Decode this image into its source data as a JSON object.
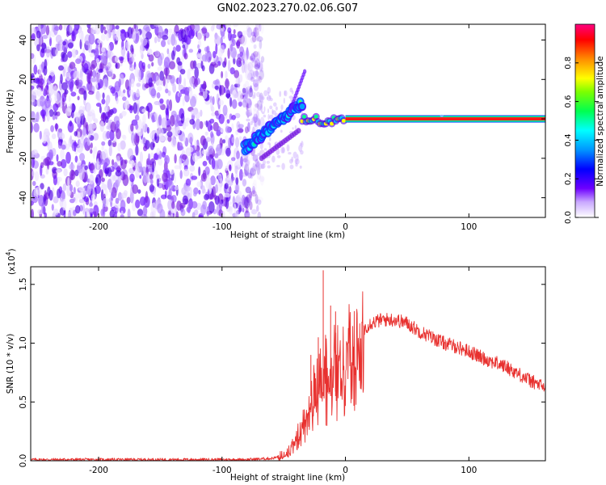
{
  "title": "GN02.2023.270.02.06.G07",
  "chart_data": [
    {
      "type": "heatmap",
      "xlabel": "Height of straight line (km)",
      "ylabel": "Frequency (Hz)",
      "xlim": [
        -255,
        162
      ],
      "ylim": [
        -50,
        48
      ],
      "xticks": [
        -200,
        -100,
        0,
        100
      ],
      "yticks": [
        -40,
        -20,
        0,
        20,
        40
      ],
      "colorbar": {
        "label": "Normalized spectral amplitude",
        "range": [
          0,
          1
        ],
        "ticks": [
          0.0,
          0.2,
          0.4,
          0.6,
          0.8
        ]
      },
      "features": {
        "noise_region_x": [
          -255,
          -75
        ],
        "ramp_x": [
          -82,
          -35
        ],
        "ramp_freq": [
          -15,
          8
        ],
        "tone_x": [
          0,
          162
        ],
        "tone_freq": 0
      }
    },
    {
      "type": "line",
      "xlabel": "Height of straight line (km)",
      "ylabel": "SNR (10 * v/v)",
      "y_multiplier": "(x10",
      "y_exponent": "4",
      "y_multiplier_close": ")",
      "xlim": [
        -255,
        162
      ],
      "ylim": [
        0,
        1.65
      ],
      "xticks": [
        -200,
        -100,
        0,
        100
      ],
      "yticks": [
        0.0,
        0.5,
        1.0,
        1.5
      ],
      "ytick_labels": [
        "0.0",
        "0.5",
        "1.0",
        "1.5"
      ],
      "color": "#e8312f",
      "series": [
        {
          "x": [
            -255,
            -150,
            -80,
            -60,
            -50,
            -45,
            -40,
            -35,
            -30,
            -25,
            -20,
            -15,
            -10,
            -5,
            0,
            10,
            20,
            30,
            40,
            50,
            60,
            70,
            80,
            90,
            100,
            110,
            120,
            130,
            140,
            150,
            162
          ],
          "values": [
            0.01,
            0.01,
            0.01,
            0.02,
            0.04,
            0.1,
            0.2,
            0.35,
            0.5,
            0.62,
            0.75,
            0.85,
            0.88,
            0.9,
            0.95,
            1.07,
            1.17,
            1.2,
            1.2,
            1.17,
            1.1,
            1.05,
            1.0,
            0.97,
            0.93,
            0.88,
            0.84,
            0.8,
            0.74,
            0.68,
            0.62
          ]
        }
      ],
      "spikes": [
        {
          "x": -18,
          "y": 1.62
        },
        {
          "x": -12,
          "y": 1.32
        },
        {
          "x": -8,
          "y": 1.27
        },
        {
          "x": -22,
          "y": 1.05
        },
        {
          "x": -28,
          "y": 0.9
        }
      ]
    }
  ],
  "colors": {
    "noise": "#7a1fe0",
    "tone": "#ff1a1a",
    "tone_edge": "#0a3cff",
    "line": "#e8312f"
  }
}
